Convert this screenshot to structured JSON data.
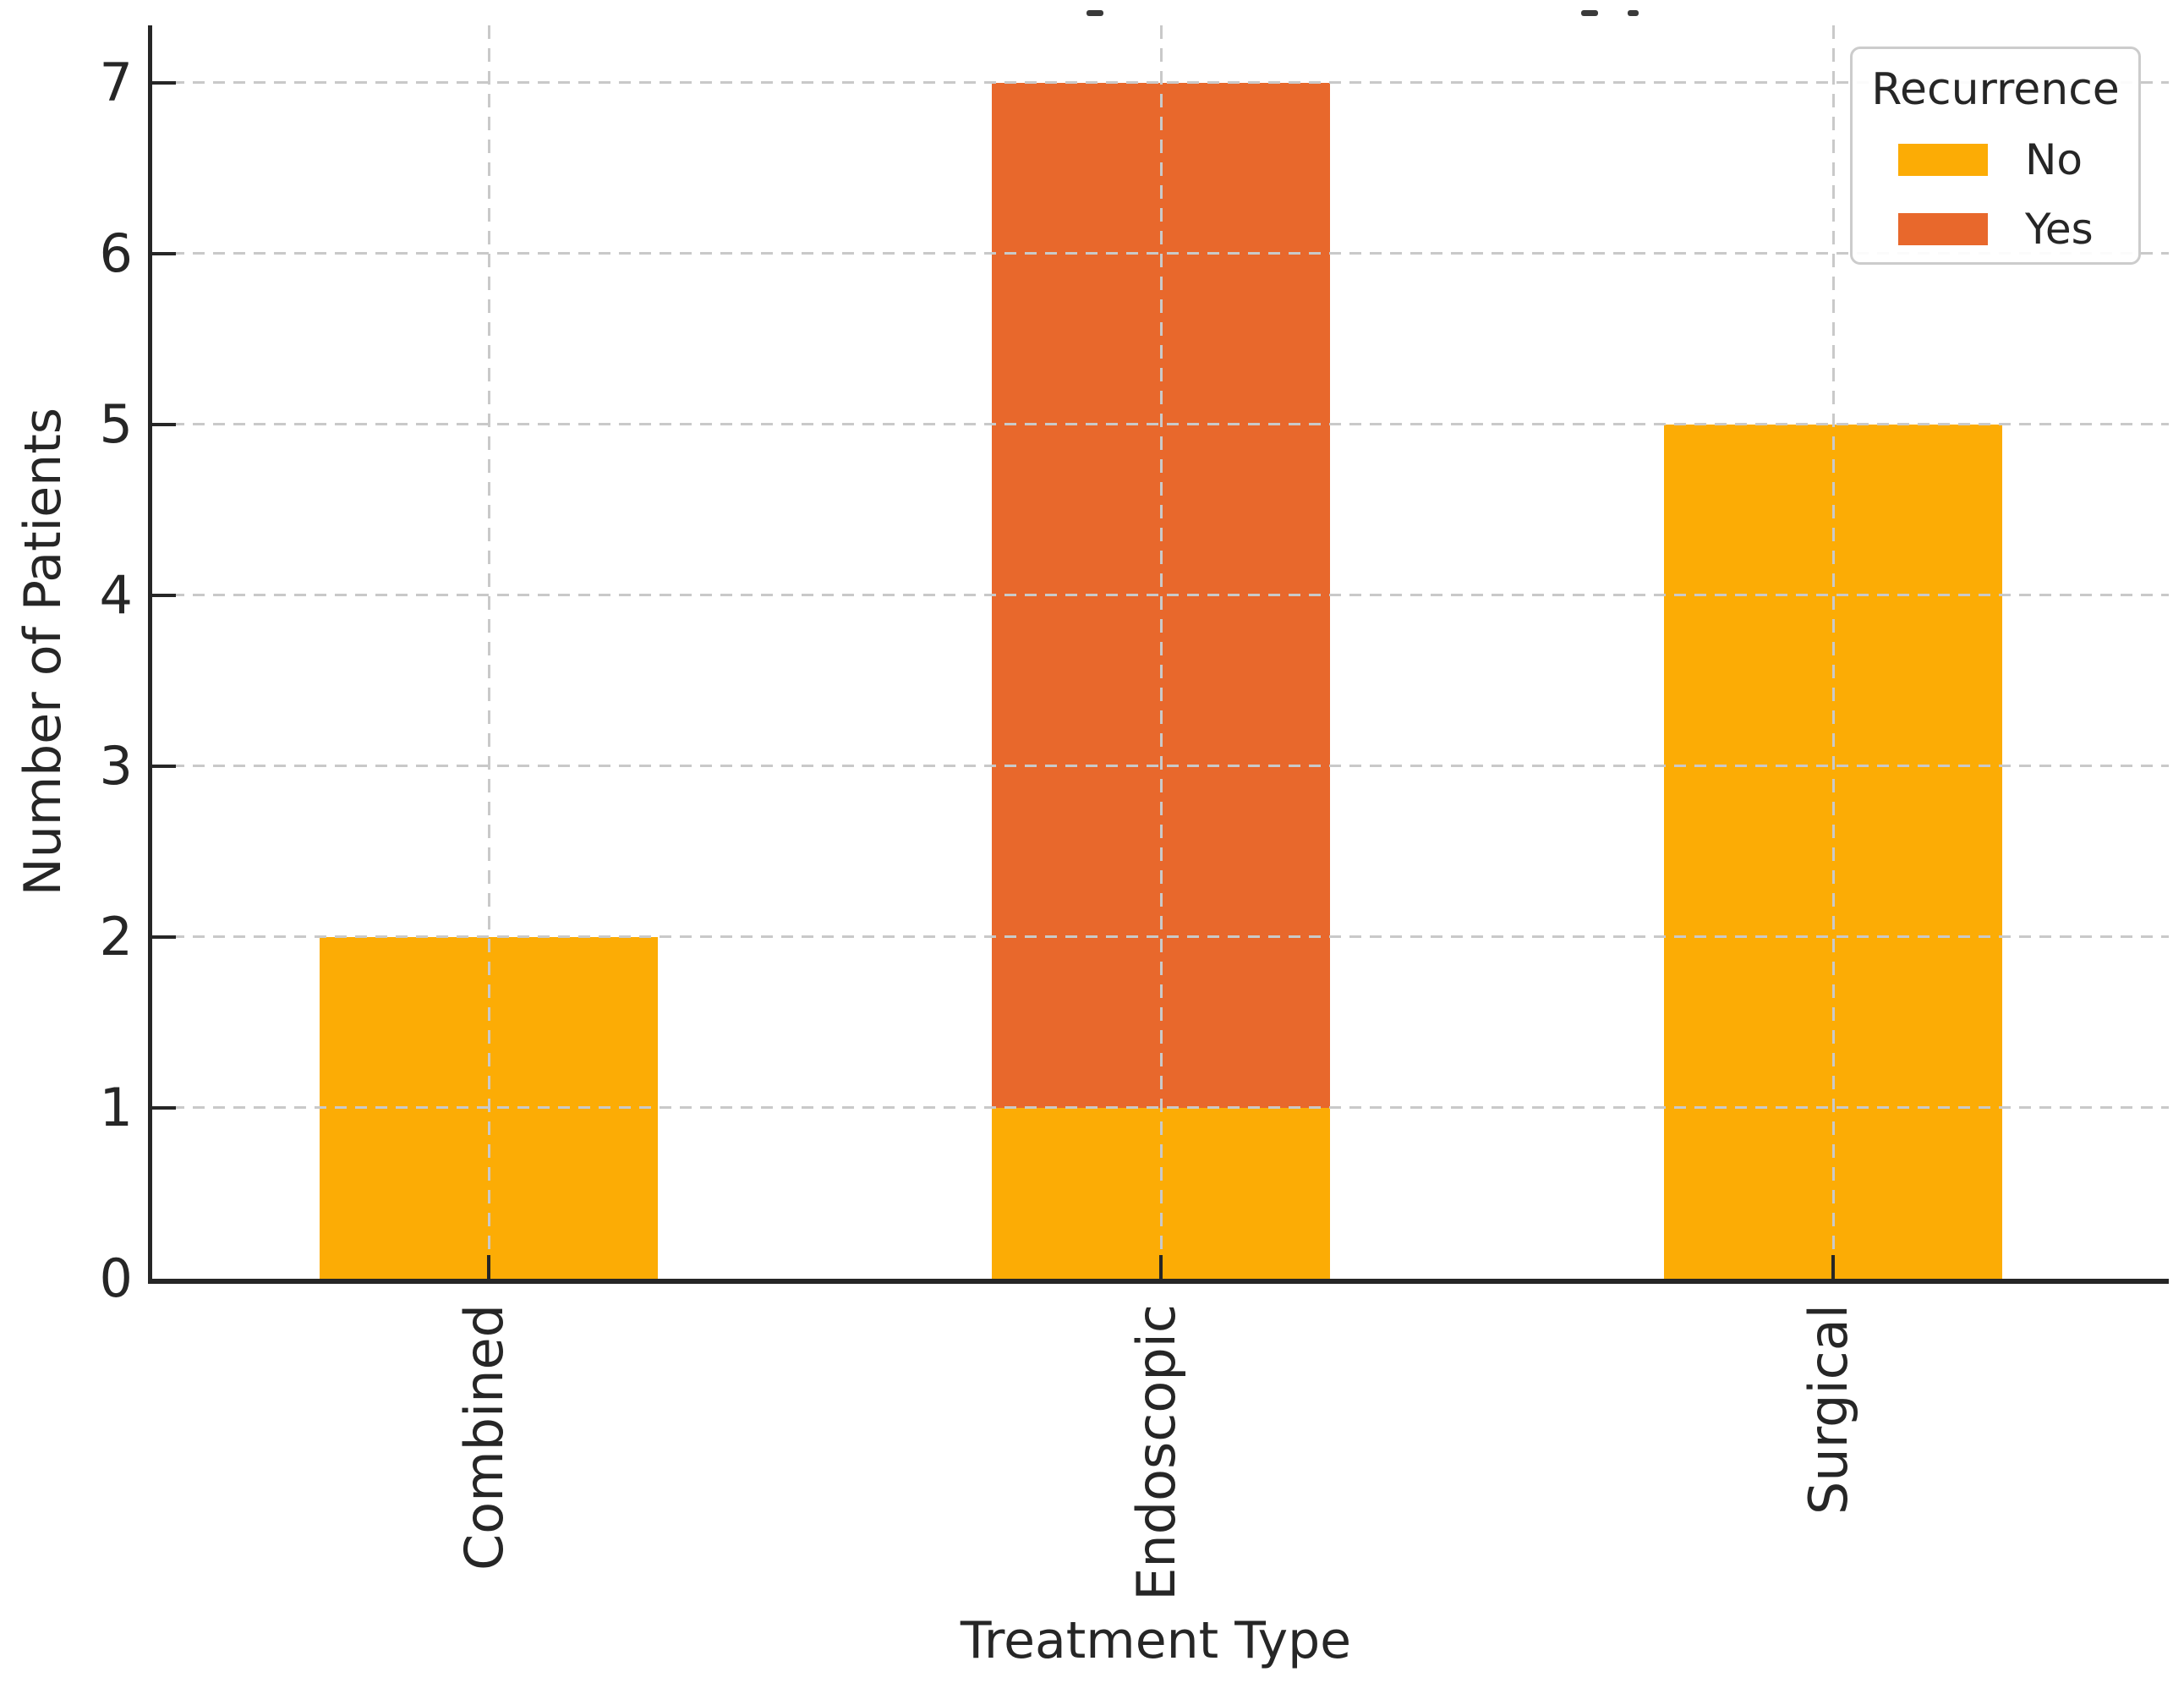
{
  "chart_data": {
    "type": "bar",
    "stacked": true,
    "orientation": "vertical",
    "categories": [
      "Combined",
      "Endoscopic",
      "Surgical"
    ],
    "series": [
      {
        "name": "No",
        "color": "#FCAC05",
        "values": [
          2,
          1,
          5
        ]
      },
      {
        "name": "Yes",
        "color": "#E8682C",
        "values": [
          0,
          6,
          0
        ]
      }
    ],
    "totals": [
      2,
      7,
      5
    ],
    "xlabel": "Treatment Type",
    "ylabel": "Number of Patients",
    "yticks": [
      0,
      1,
      2,
      3,
      4,
      5,
      6,
      7
    ],
    "ylim": [
      0,
      7.33
    ],
    "xticklabel_rotation": 90,
    "grid": {
      "style": "dashed",
      "color": "#C9C9C9",
      "axes": "both",
      "above_bars": true
    },
    "legend": {
      "title": "Recurrence",
      "position": "upper right",
      "entries": [
        "No",
        "Yes"
      ]
    }
  },
  "style": {
    "spine_color": "#262626",
    "text_color": "#262626",
    "grid_color": "#C9C9C9",
    "legend_border_color": "#CCCCCC",
    "background": "#FFFFFF"
  }
}
